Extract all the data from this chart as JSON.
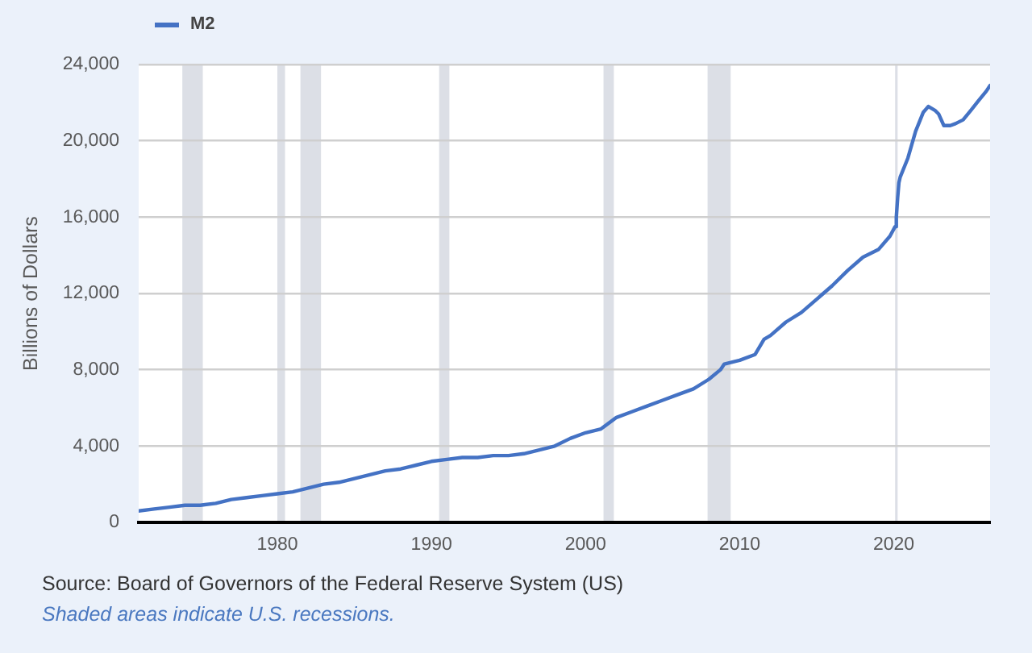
{
  "chart_data": {
    "type": "line",
    "ylabel": "Billions of Dollars",
    "annotations": [
      "Source: Board of Governors of the Federal Reserve System (US)",
      "Shaded areas indicate U.S. recessions."
    ],
    "x": [
      "1971-01",
      "1972-01",
      "1973-01",
      "1974-01",
      "1975-01",
      "1976-01",
      "1977-01",
      "1978-01",
      "1979-01",
      "1980-01",
      "1981-01",
      "1982-01",
      "1983-01",
      "1984-01",
      "1985-01",
      "1986-01",
      "1987-01",
      "1988-01",
      "1989-01",
      "1990-01",
      "1991-01",
      "1992-01",
      "1993-01",
      "1994-01",
      "1995-01",
      "1996-01",
      "1997-01",
      "1998-01",
      "1999-01",
      "2000-01",
      "2001-01",
      "2002-01",
      "2003-01",
      "2004-01",
      "2005-01",
      "2006-01",
      "2007-01",
      "2008-01",
      "2008-10",
      "2009-01",
      "2010-01",
      "2011-01",
      "2011-08",
      "2012-01",
      "2013-01",
      "2014-01",
      "2015-01",
      "2016-01",
      "2017-01",
      "2018-01",
      "2019-01",
      "2019-10",
      "2020-02",
      "2020-03",
      "2020-04",
      "2020-05",
      "2020-06",
      "2020-12",
      "2021-06",
      "2021-12",
      "2022-04",
      "2022-09",
      "2022-12",
      "2023-04",
      "2023-09",
      "2024-01",
      "2024-07",
      "2025-01",
      "2025-07",
      "2026-01",
      "2026-04"
    ],
    "series": [
      {
        "name": "M2",
        "color": "#4472c4",
        "values": [
          600,
          700,
          800,
          900,
          900,
          1000,
          1200,
          1300,
          1400,
          1500,
          1600,
          1800,
          2000,
          2100,
          2300,
          2500,
          2700,
          2800,
          3000,
          3200,
          3300,
          3400,
          3400,
          3500,
          3500,
          3600,
          3800,
          4000,
          4400,
          4700,
          4900,
          5500,
          5800,
          6100,
          6400,
          6700,
          7000,
          7500,
          8000,
          8300,
          8500,
          8800,
          9600,
          9800,
          10500,
          11000,
          11700,
          12400,
          13200,
          13900,
          14300,
          15000,
          15500,
          16000,
          17000,
          17800,
          18100,
          19100,
          20500,
          21500,
          21800,
          21600,
          21400,
          20800,
          20800,
          20900,
          21100,
          21600,
          22100,
          22600,
          22900
        ]
      }
    ],
    "xlim": [
      "1971-01",
      "2026-04"
    ],
    "ylim": [
      0,
      24000
    ],
    "xticks": [
      "1980",
      "1990",
      "2000",
      "2010",
      "2020"
    ],
    "yticks": [
      0,
      {
        "value": 4000,
        "label": "4,000"
      },
      {
        "value": 8000,
        "label": "8,000"
      },
      {
        "value": 12000,
        "label": "12,000"
      },
      {
        "value": 16000,
        "label": "16,000"
      },
      {
        "value": 20000,
        "label": "20,000"
      },
      {
        "value": 24000,
        "label": "24,000"
      }
    ],
    "bands": [
      {
        "axis": "x",
        "from": "1973-11",
        "to": "1975-03",
        "color": "#dcdfe6"
      },
      {
        "axis": "x",
        "from": "1980-01",
        "to": "1980-07",
        "color": "#dcdfe6"
      },
      {
        "axis": "x",
        "from": "1981-07",
        "to": "1982-11",
        "color": "#dcdfe6"
      },
      {
        "axis": "x",
        "from": "1990-07",
        "to": "1991-03",
        "color": "#dcdfe6"
      },
      {
        "axis": "x",
        "from": "2001-03",
        "to": "2001-11",
        "color": "#dcdfe6"
      },
      {
        "axis": "x",
        "from": "2007-12",
        "to": "2009-06",
        "color": "#dcdfe6"
      },
      {
        "axis": "x",
        "from": "2020-02",
        "to": "2020-04",
        "color": "#dcdfe6"
      }
    ],
    "grid": "y",
    "legend": "top left"
  }
}
